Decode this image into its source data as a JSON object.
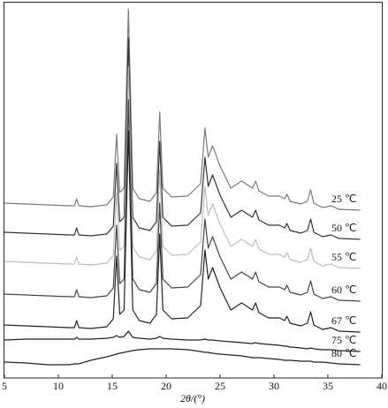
{
  "chart_data": {
    "type": "line",
    "x_label": "2θ/(°)",
    "x": [
      5,
      7,
      9,
      11,
      11.5,
      11.7,
      11.9,
      13,
      14.5,
      15.1,
      15.4,
      15.7,
      16.1,
      16.5,
      16.9,
      17.5,
      18.5,
      19.1,
      19.4,
      19.7,
      20.5,
      22,
      23.2,
      23.6,
      23.9,
      24.3,
      25,
      26,
      27,
      28,
      28.3,
      28.6,
      29.5,
      30.5,
      31,
      31.2,
      31.5,
      32.5,
      33.1,
      33.4,
      33.7,
      34.5,
      35.3,
      36,
      38
    ],
    "xlim": [
      5,
      40
    ],
    "xticks": [
      5,
      10,
      15,
      20,
      25,
      30,
      35,
      40
    ],
    "series": [
      {
        "name": "25 ℃",
        "color": "#7a7a7a",
        "values": [
          198,
          197,
          196,
          195,
          195,
          203,
          195,
          194,
          196,
          205,
          276,
          210,
          215,
          418,
          215,
          203,
          200,
          210,
          301,
          215,
          205,
          206,
          220,
          283,
          250,
          263,
          240,
          215,
          223,
          215,
          223,
          212,
          206,
          206,
          203,
          208,
          200,
          197,
          200,
          213,
          198,
          193,
          195,
          191,
          190
        ]
      },
      {
        "name": "50 ℃",
        "color": "#333333",
        "values": [
          165,
          164,
          163,
          162,
          162,
          170,
          162,
          161,
          163,
          172,
          243,
          177,
          182,
          385,
          182,
          170,
          167,
          177,
          268,
          182,
          172,
          173,
          187,
          250,
          217,
          230,
          207,
          182,
          190,
          182,
          190,
          179,
          173,
          173,
          170,
          175,
          167,
          164,
          167,
          180,
          165,
          160,
          162,
          158,
          157
        ]
      },
      {
        "name": "55 ℃",
        "color": "#bdbdbd",
        "values": [
          132,
          131,
          130,
          129,
          129,
          137,
          129,
          128,
          130,
          139,
          210,
          144,
          149,
          352,
          149,
          137,
          134,
          144,
          235,
          149,
          139,
          140,
          154,
          217,
          184,
          197,
          174,
          149,
          157,
          149,
          157,
          146,
          140,
          140,
          137,
          142,
          134,
          131,
          134,
          147,
          132,
          127,
          129,
          125,
          124
        ]
      },
      {
        "name": "60 ℃",
        "color": "#444444",
        "values": [
          95,
          94,
          93,
          92,
          92,
          100,
          92,
          91,
          93,
          102,
          173,
          107,
          112,
          315,
          112,
          100,
          97,
          107,
          198,
          112,
          102,
          103,
          117,
          180,
          147,
          160,
          137,
          112,
          120,
          112,
          120,
          109,
          103,
          103,
          100,
          105,
          97,
          94,
          97,
          110,
          95,
          90,
          92,
          88,
          87
        ]
      },
      {
        "name": "67 ℃",
        "color": "#222222",
        "values": [
          60,
          59,
          58,
          57,
          57,
          65,
          57,
          56,
          58,
          67,
          138,
          72,
          77,
          280,
          77,
          65,
          62,
          72,
          163,
          77,
          67,
          68,
          82,
          145,
          112,
          125,
          102,
          77,
          85,
          77,
          85,
          74,
          68,
          68,
          65,
          70,
          62,
          59,
          62,
          75,
          60,
          55,
          57,
          53,
          52
        ]
      },
      {
        "name": "75 ℃",
        "color": "#222222",
        "values": [
          43,
          44,
          44,
          44,
          44,
          46,
          44,
          44,
          45,
          46,
          48,
          46,
          47,
          53,
          46,
          45,
          44,
          45,
          47,
          45,
          44,
          43,
          43,
          44,
          43,
          43,
          42,
          41,
          40,
          39,
          40,
          39,
          38,
          37,
          36,
          36,
          35,
          34,
          33,
          34,
          33,
          32,
          32,
          31,
          30
        ]
      },
      {
        "name": "80 ℃",
        "color": "#222222",
        "values": [
          18,
          17,
          15,
          15,
          16,
          16,
          16,
          20,
          24,
          26,
          27,
          28,
          29,
          30,
          31,
          32,
          33,
          33,
          33,
          33,
          33,
          32,
          30,
          29,
          29,
          28,
          27,
          26,
          25,
          23,
          23,
          23,
          22,
          21,
          20,
          20,
          20,
          19,
          19,
          19,
          18,
          18,
          17,
          16,
          15
        ]
      }
    ]
  }
}
